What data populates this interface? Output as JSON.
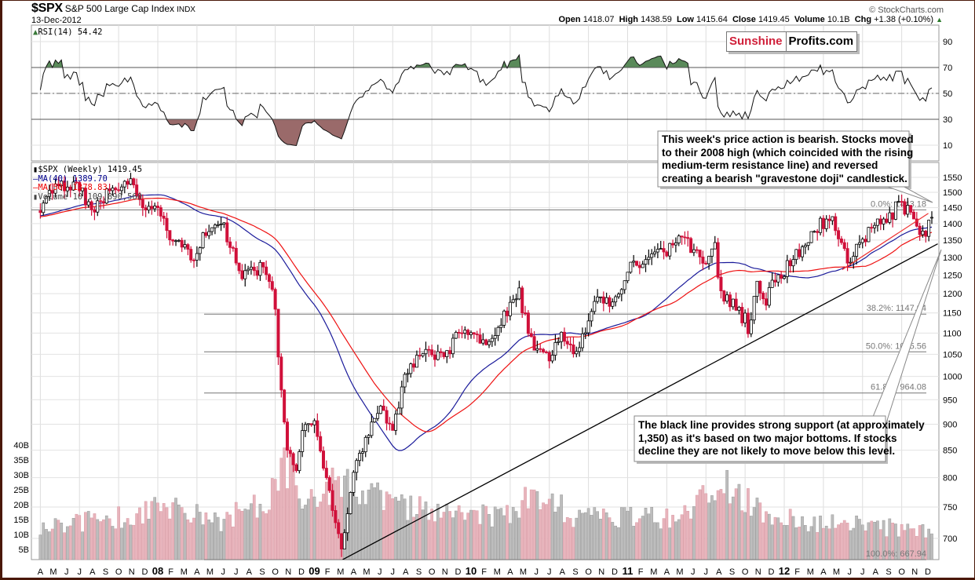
{
  "header": {
    "symbol": "$SPX",
    "name": "S&P 500 Large Cap Index",
    "exchange": "INDX",
    "date": "13-Dec-2012",
    "copyright": "© StockCharts.com",
    "open_label": "Open",
    "open": "1418.07",
    "high_label": "High",
    "high": "1438.59",
    "low_label": "Low",
    "low": "1415.64",
    "close_label": "Close",
    "close": "1419.45",
    "volume_label": "Volume",
    "volume": "10.1B",
    "chg_label": "Chg",
    "chg": "+1.38 (+0.10%)",
    "chg_icon": "triangle-up-icon"
  },
  "logo": {
    "part1": "Sunshine",
    "part2": "Profits.com"
  },
  "rsi_panel": {
    "label": "RSI(14) 54.42"
  },
  "price_panel": {
    "legend": {
      "price": "$SPX (Weekly) 1419.45",
      "ma40": "MA(40) 1389.70",
      "ma50": "MA(50) 1378.83",
      "volume": "Volume 10,109,890,560"
    }
  },
  "callouts": {
    "top": [
      "This week's price action is bearish. Stocks moved",
      "to their 2008 high (which coincided with the rising",
      "medium-term resistance line) and reversed",
      "creating a bearish \"gravestone doji\" candlestick."
    ],
    "bottom": [
      "The black line provides strong support (at approximately",
      "1,350) as it's based on two major bottoms. If stocks",
      "decline they are not likely to move below this level."
    ]
  },
  "colors": {
    "up": "#ffffff",
    "down": "#d0103a",
    "ma40": "#1a1a9a",
    "ma50": "#ee1111",
    "vol_up": "#bdbdbd",
    "vol_down": "#e8b4bc",
    "rsi_ob": "#5a8a5a",
    "rsi_os": "#9a6a6a"
  },
  "chart_data": {
    "type": "candlestick",
    "title": "$SPX S&P 500 Large Cap Index (Weekly)",
    "period": "weekly",
    "time_range": [
      2007.25,
      2012.95
    ],
    "price_anchors": [
      [
        2007.25,
        1440
      ],
      [
        2007.33,
        1505
      ],
      [
        2007.42,
        1530
      ],
      [
        2007.5,
        1510
      ],
      [
        2007.58,
        1420
      ],
      [
        2007.62,
        1470
      ],
      [
        2007.75,
        1527
      ],
      [
        2007.8,
        1560
      ],
      [
        2007.92,
        1455
      ],
      [
        2008.0,
        1468
      ],
      [
        2008.08,
        1330
      ],
      [
        2008.17,
        1331
      ],
      [
        2008.21,
        1290
      ],
      [
        2008.33,
        1386
      ],
      [
        2008.4,
        1420
      ],
      [
        2008.5,
        1280
      ],
      [
        2008.55,
        1240
      ],
      [
        2008.67,
        1283
      ],
      [
        2008.75,
        1165
      ],
      [
        2008.8,
        900
      ],
      [
        2008.88,
        800
      ],
      [
        2008.92,
        880
      ],
      [
        2009.0,
        903
      ],
      [
        2009.05,
        830
      ],
      [
        2009.12,
        735
      ],
      [
        2009.18,
        690
      ],
      [
        2009.25,
        800
      ],
      [
        2009.33,
        873
      ],
      [
        2009.42,
        940
      ],
      [
        2009.5,
        880
      ],
      [
        2009.58,
        1000
      ],
      [
        2009.67,
        1040
      ],
      [
        2009.75,
        1060
      ],
      [
        2009.83,
        1036
      ],
      [
        2009.92,
        1096
      ],
      [
        2010.0,
        1115
      ],
      [
        2010.08,
        1074
      ],
      [
        2010.17,
        1104
      ],
      [
        2010.3,
        1210
      ],
      [
        2010.38,
        1090
      ],
      [
        2010.5,
        1030
      ],
      [
        2010.58,
        1110
      ],
      [
        2010.67,
        1049
      ],
      [
        2010.75,
        1141
      ],
      [
        2010.83,
        1183
      ],
      [
        2010.92,
        1190
      ],
      [
        2011.0,
        1258
      ],
      [
        2011.08,
        1286
      ],
      [
        2011.17,
        1330
      ],
      [
        2011.25,
        1310
      ],
      [
        2011.33,
        1364
      ],
      [
        2011.42,
        1320
      ],
      [
        2011.5,
        1300
      ],
      [
        2011.55,
        1345
      ],
      [
        2011.6,
        1200
      ],
      [
        2011.67,
        1180
      ],
      [
        2011.75,
        1131
      ],
      [
        2011.77,
        1100
      ],
      [
        2011.83,
        1253
      ],
      [
        2011.88,
        1160
      ],
      [
        2011.92,
        1240
      ],
      [
        2012.0,
        1258
      ],
      [
        2012.08,
        1312
      ],
      [
        2012.17,
        1366
      ],
      [
        2012.27,
        1415
      ],
      [
        2012.33,
        1398
      ],
      [
        2012.4,
        1290
      ],
      [
        2012.5,
        1360
      ],
      [
        2012.58,
        1390
      ],
      [
        2012.67,
        1410
      ],
      [
        2012.72,
        1465
      ],
      [
        2012.78,
        1440
      ],
      [
        2012.85,
        1400
      ],
      [
        2012.88,
        1355
      ],
      [
        2012.95,
        1419
      ]
    ],
    "volume_anchors_billions": [
      [
        2007.25,
        12
      ],
      [
        2007.6,
        15
      ],
      [
        2007.9,
        17
      ],
      [
        2008.1,
        20
      ],
      [
        2008.4,
        14
      ],
      [
        2008.7,
        22
      ],
      [
        2008.8,
        36
      ],
      [
        2008.95,
        22
      ],
      [
        2009.2,
        28
      ],
      [
        2009.5,
        20
      ],
      [
        2009.9,
        16
      ],
      [
        2010.3,
        17
      ],
      [
        2010.4,
        25
      ],
      [
        2010.7,
        15
      ],
      [
        2011.0,
        16
      ],
      [
        2011.3,
        15
      ],
      [
        2011.6,
        28
      ],
      [
        2011.8,
        20
      ],
      [
        2012.0,
        15
      ],
      [
        2012.5,
        13
      ],
      [
        2012.95,
        11
      ]
    ],
    "moving_averages": [
      {
        "name": "MA(40)",
        "period": 40,
        "last": 1389.7
      },
      {
        "name": "MA(50)",
        "period": 50,
        "last": 1378.83
      }
    ],
    "rsi": {
      "period": 14,
      "last": 54.42,
      "levels": [
        30,
        50,
        70
      ]
    },
    "price_axis": {
      "scale": "log",
      "ticks": [
        700,
        750,
        800,
        850,
        900,
        950,
        1000,
        1050,
        1100,
        1150,
        1200,
        1250,
        1300,
        1350,
        1400,
        1450,
        1500,
        1550
      ]
    },
    "rsi_axis": {
      "ticks": [
        10,
        30,
        50,
        70,
        90
      ]
    },
    "volume_axis": {
      "ticks": [
        5,
        10,
        15,
        20,
        25,
        30,
        35,
        40
      ],
      "tick_labels": [
        "5B",
        "10B",
        "15B",
        "20B",
        "25B",
        "30B",
        "35B",
        "40B"
      ]
    },
    "x_axis": {
      "labels": [
        [
          "A",
          2007.25
        ],
        [
          "M",
          2007.333
        ],
        [
          "J",
          2007.417
        ],
        [
          "J",
          2007.5
        ],
        [
          "A",
          2007.583
        ],
        [
          "S",
          2007.667
        ],
        [
          "O",
          2007.75
        ],
        [
          "N",
          2007.833
        ],
        [
          "D",
          2007.917
        ],
        [
          "08",
          2008.0
        ],
        [
          "F",
          2008.083
        ],
        [
          "M",
          2008.167
        ],
        [
          "A",
          2008.25
        ],
        [
          "M",
          2008.333
        ],
        [
          "J",
          2008.417
        ],
        [
          "J",
          2008.5
        ],
        [
          "A",
          2008.583
        ],
        [
          "S",
          2008.667
        ],
        [
          "O",
          2008.75
        ],
        [
          "N",
          2008.833
        ],
        [
          "D",
          2008.917
        ],
        [
          "09",
          2009.0
        ],
        [
          "F",
          2009.083
        ],
        [
          "M",
          2009.167
        ],
        [
          "A",
          2009.25
        ],
        [
          "M",
          2009.333
        ],
        [
          "J",
          2009.417
        ],
        [
          "J",
          2009.5
        ],
        [
          "A",
          2009.583
        ],
        [
          "S",
          2009.667
        ],
        [
          "O",
          2009.75
        ],
        [
          "N",
          2009.833
        ],
        [
          "D",
          2009.917
        ],
        [
          "10",
          2010.0
        ],
        [
          "F",
          2010.083
        ],
        [
          "M",
          2010.167
        ],
        [
          "A",
          2010.25
        ],
        [
          "M",
          2010.333
        ],
        [
          "J",
          2010.417
        ],
        [
          "J",
          2010.5
        ],
        [
          "A",
          2010.583
        ],
        [
          "S",
          2010.667
        ],
        [
          "O",
          2010.75
        ],
        [
          "N",
          2010.833
        ],
        [
          "D",
          2010.917
        ],
        [
          "11",
          2011.0
        ],
        [
          "F",
          2011.083
        ],
        [
          "M",
          2011.167
        ],
        [
          "A",
          2011.25
        ],
        [
          "M",
          2011.333
        ],
        [
          "J",
          2011.417
        ],
        [
          "J",
          2011.5
        ],
        [
          "A",
          2011.583
        ],
        [
          "S",
          2011.667
        ],
        [
          "O",
          2011.75
        ],
        [
          "N",
          2011.833
        ],
        [
          "D",
          2011.917
        ],
        [
          "12",
          2012.0
        ],
        [
          "F",
          2012.083
        ],
        [
          "M",
          2012.167
        ],
        [
          "A",
          2012.25
        ],
        [
          "M",
          2012.333
        ],
        [
          "J",
          2012.417
        ],
        [
          "J",
          2012.5
        ],
        [
          "A",
          2012.583
        ],
        [
          "S",
          2012.667
        ],
        [
          "O",
          2012.75
        ],
        [
          "N",
          2012.833
        ],
        [
          "D",
          2012.917
        ]
      ]
    },
    "fibonacci": [
      {
        "label": "0.0%: 1443.18",
        "value": 1443.18
      },
      {
        "label": "38.2%: 1147.04",
        "value": 1147.04
      },
      {
        "label": "50.0%: 1055.56",
        "value": 1055.56
      },
      {
        "label": "61.8%: 964.08",
        "value": 964.08
      },
      {
        "label": "100.0%: 667.94",
        "value": 667.94
      }
    ],
    "trendlines": [
      {
        "name": "support",
        "color": "#000000",
        "from": [
          2009.18,
          667.94
        ],
        "through": [
          2011.78,
          1075
        ],
        "to_t": 2012.98
      },
      {
        "name": "resistance",
        "color": "#ee3333",
        "from": [
          2012.37,
          1265
        ],
        "to": [
          2012.92,
          1432
        ]
      }
    ]
  }
}
